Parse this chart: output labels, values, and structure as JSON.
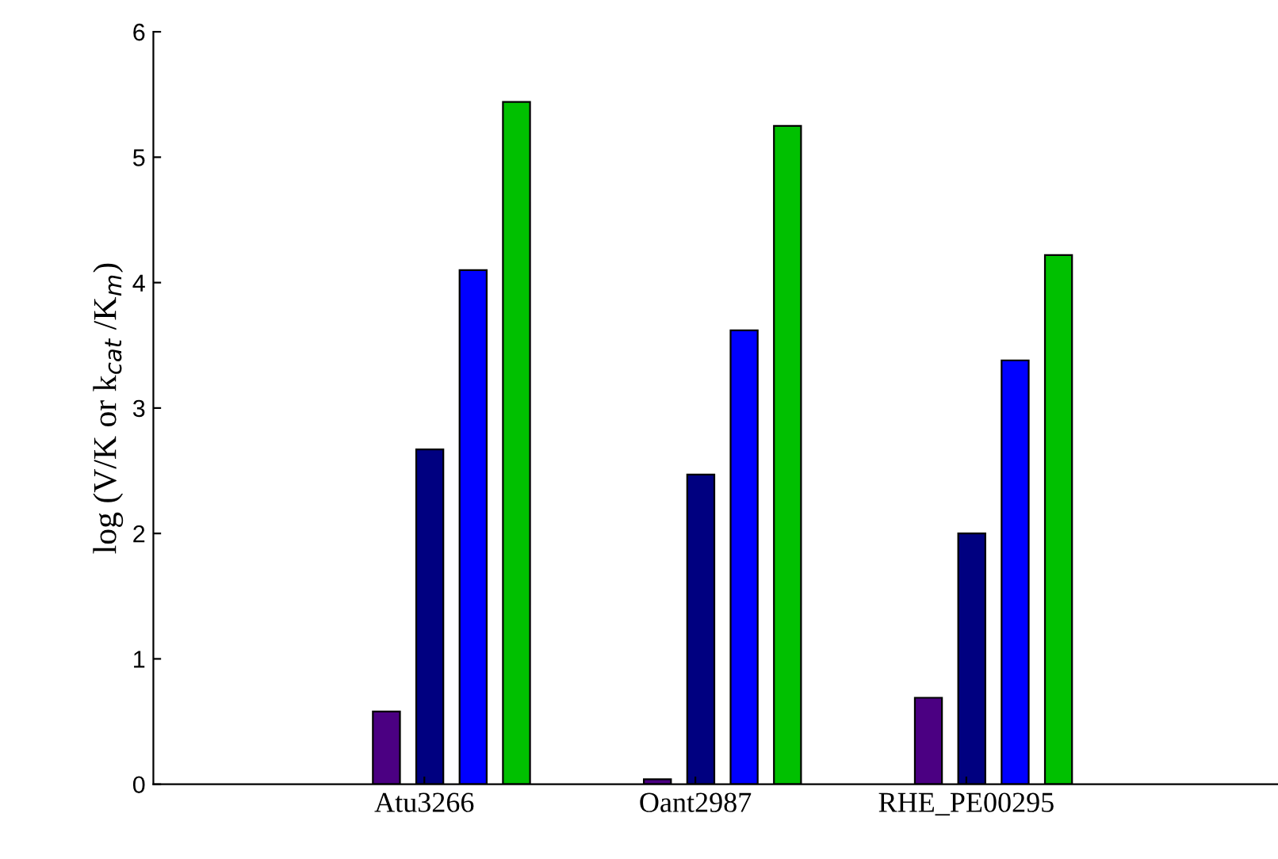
{
  "chart_data": {
    "type": "bar",
    "ylabel": "log (V/K or k$_{cat}$ /K$_{m}$)",
    "categories": [
      "Atu3266",
      "Oant2987",
      "RHE_PE00295"
    ],
    "series": [
      {
        "color": "#4b0082",
        "values": [
          0.58,
          0.04,
          0.69
        ]
      },
      {
        "color": "#000080",
        "values": [
          2.67,
          2.47,
          2.0
        ]
      },
      {
        "color": "#0000ff",
        "values": [
          4.1,
          3.62,
          3.38
        ]
      },
      {
        "color": "#00c000",
        "values": [
          5.44,
          5.25,
          4.22
        ]
      }
    ],
    "ylim": [
      0,
      6
    ],
    "yticks": [
      0,
      1,
      2,
      3,
      4,
      5,
      6
    ],
    "grid": false,
    "legend": false
  }
}
